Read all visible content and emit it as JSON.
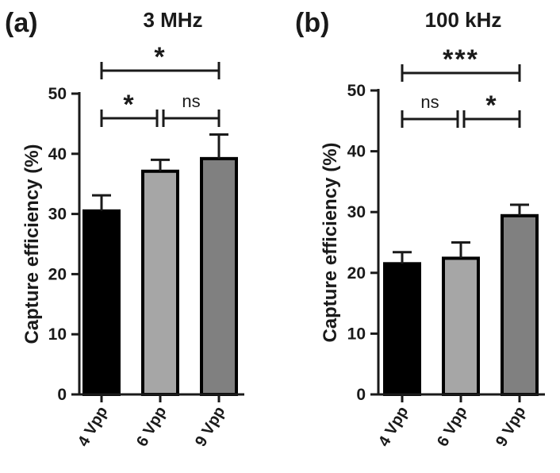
{
  "chart_data": [
    {
      "panel_label": "(a)",
      "type": "bar",
      "title": "3 MHz",
      "ylabel": "Capture efficiency (%)",
      "xlabel": "",
      "ylim": [
        0,
        50
      ],
      "yticks": [
        0,
        10,
        20,
        30,
        40,
        50
      ],
      "categories": [
        "4 Vpp",
        "6 Vpp",
        "9 Vpp"
      ],
      "values": [
        30.5,
        37.1,
        39.2
      ],
      "errors": [
        2.6,
        1.9,
        4.0
      ],
      "bar_colors": [
        "#000000",
        "#a6a6a6",
        "#808080"
      ],
      "comparisons": [
        {
          "from": 0,
          "to": 2,
          "label": "*"
        },
        {
          "from": 0,
          "to": 1,
          "label": "*"
        },
        {
          "from": 1,
          "to": 2,
          "label": "ns"
        }
      ]
    },
    {
      "panel_label": "(b)",
      "type": "bar",
      "title": "100 kHz",
      "ylabel": "Capture efficiency (%)",
      "xlabel": "",
      "ylim": [
        0,
        50
      ],
      "yticks": [
        0,
        10,
        20,
        30,
        40,
        50
      ],
      "categories": [
        "4 Vpp",
        "6 Vpp",
        "9 Vpp"
      ],
      "values": [
        21.5,
        22.4,
        29.4
      ],
      "errors": [
        1.9,
        2.6,
        1.8
      ],
      "bar_colors": [
        "#000000",
        "#a6a6a6",
        "#808080"
      ],
      "comparisons": [
        {
          "from": 0,
          "to": 2,
          "label": "***"
        },
        {
          "from": 0,
          "to": 1,
          "label": "ns"
        },
        {
          "from": 1,
          "to": 2,
          "label": "*"
        }
      ]
    }
  ]
}
